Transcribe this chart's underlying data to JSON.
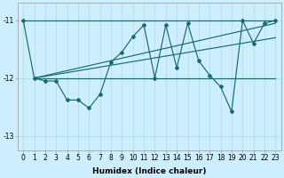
{
  "xlabel": "Humidex (Indice chaleur)",
  "bg_color": "#cceeff",
  "line_color": "#1a6b6b",
  "grid_color": "#aadddd",
  "ylim": [
    -13.25,
    -10.7
  ],
  "xlim": [
    -0.5,
    23.5
  ],
  "yticks": [
    -13,
    -12,
    -11
  ],
  "xticks": [
    0,
    1,
    2,
    3,
    4,
    5,
    6,
    7,
    8,
    9,
    10,
    11,
    12,
    13,
    14,
    15,
    16,
    17,
    18,
    19,
    20,
    21,
    22,
    23
  ],
  "main_x": [
    0,
    1,
    2,
    3,
    4,
    5,
    6,
    7,
    8,
    9,
    10,
    11,
    12,
    13,
    14,
    15,
    16,
    17,
    18,
    19,
    20,
    21,
    22,
    23
  ],
  "main_y": [
    -11.0,
    -12.0,
    -12.05,
    -12.05,
    -12.38,
    -12.38,
    -12.52,
    -12.28,
    -11.72,
    -11.55,
    -11.28,
    -11.08,
    -12.0,
    -11.08,
    -11.82,
    -11.05,
    -11.7,
    -11.95,
    -12.15,
    -12.58,
    -11.0,
    -11.4,
    -11.05,
    -11.0
  ],
  "trend1_x": [
    0,
    23
  ],
  "trend1_y": [
    -11.0,
    -11.0
  ],
  "trend2_x": [
    1,
    23
  ],
  "trend2_y": [
    -12.0,
    -11.05
  ],
  "trend3_x": [
    1,
    23
  ],
  "trend3_y": [
    -12.0,
    -11.3
  ],
  "trend4_x": [
    1,
    23
  ],
  "trend4_y": [
    -12.0,
    -12.0
  ],
  "fontsize_label": 6.5,
  "fontsize_tick": 5.5
}
